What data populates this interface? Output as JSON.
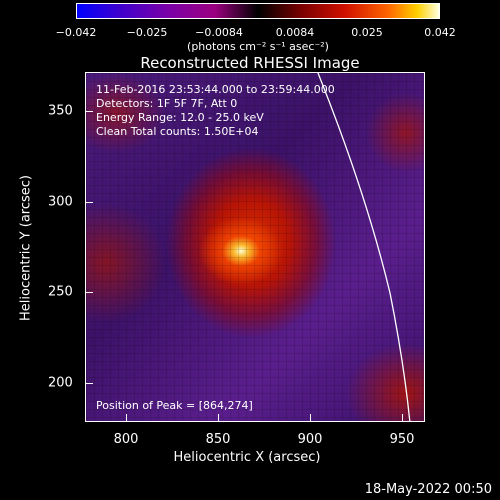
{
  "colorbar": {
    "ticks": [
      "−0.042",
      "−0.025",
      "−0.0084",
      "0.0084",
      "0.025",
      "0.042"
    ],
    "units": "(photons cm⁻² s⁻¹ asec⁻²)"
  },
  "title": "Reconstructed RHESSI Image",
  "info": {
    "time_range": "11-Feb-2016 23:53:44.000 to 23:59:44.000",
    "detectors": "Detectors: 1F 5F 7F, Att 0",
    "energy": "Energy Range: 12.0 - 25.0 keV",
    "clean": "Clean     Total counts: 1.50E+04",
    "peak": "Position of Peak = [864,274]"
  },
  "axes": {
    "xlabel": "Heliocentric X (arcsec)",
    "ylabel": "Heliocentric Y (arcsec)",
    "xticks": [
      "800",
      "850",
      "900",
      "950"
    ],
    "yticks": [
      "350",
      "300",
      "250",
      "200"
    ]
  },
  "footer": {
    "date": "18-May-2022 00:50"
  }
}
